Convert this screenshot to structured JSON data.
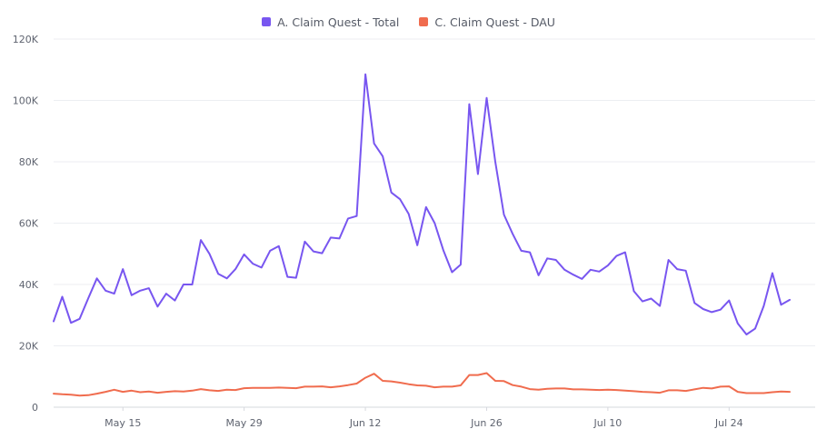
{
  "chart_data": {
    "type": "line",
    "title": "",
    "xlabel": "",
    "ylabel": "",
    "ylim": [
      0,
      120000
    ],
    "yticks": [
      0,
      20000,
      40000,
      60000,
      80000,
      100000,
      120000
    ],
    "ytick_labels": [
      "0",
      "20K",
      "40K",
      "60K",
      "80K",
      "100K",
      "120K"
    ],
    "xtick_labels": [
      "May 15",
      "May 29",
      "Jun 12",
      "Jun 26",
      "Jul 10",
      "Jul 24"
    ],
    "xtick_indices": [
      8,
      22,
      36,
      50,
      64,
      78
    ],
    "grid": true,
    "legend": "top-center",
    "x_start": "2023-05-07",
    "series": [
      {
        "name": "A. Claim Quest - Total",
        "color": "#7856f0",
        "values": [
          28000,
          36000,
          27500,
          28800,
          35500,
          42000,
          38000,
          37000,
          45000,
          36500,
          38000,
          38800,
          32800,
          37000,
          34800,
          40000,
          40000,
          54500,
          50000,
          43500,
          42000,
          45000,
          49800,
          46800,
          45500,
          51000,
          52500,
          42500,
          42200,
          54000,
          50800,
          50200,
          55300,
          55000,
          61500,
          62300,
          108500,
          86000,
          81800,
          70000,
          67800,
          63000,
          52800,
          65200,
          60000,
          51200,
          44000,
          46500,
          98800,
          76000,
          100800,
          80000,
          62800,
          56500,
          51000,
          50500,
          43000,
          48500,
          48000,
          44800,
          43200,
          41800,
          44800,
          44200,
          46200,
          49300,
          50500,
          37800,
          34500,
          35400,
          33000,
          48000,
          45000,
          44500,
          34000,
          32000,
          31000,
          31800,
          34800,
          27300,
          23700,
          25600,
          33000,
          43700,
          33400,
          35000
        ]
      },
      {
        "name": "C. Claim Quest - DAU",
        "color": "#f06c4e",
        "values": [
          4400,
          4200,
          4100,
          3800,
          3900,
          4400,
          5000,
          5700,
          5000,
          5400,
          4900,
          5100,
          4700,
          5000,
          5200,
          5100,
          5400,
          5900,
          5500,
          5300,
          5700,
          5600,
          6200,
          6300,
          6300,
          6300,
          6400,
          6300,
          6200,
          6700,
          6700,
          6800,
          6500,
          6800,
          7200,
          7700,
          9600,
          10900,
          8600,
          8400,
          8000,
          7500,
          7100,
          7000,
          6500,
          6700,
          6700,
          7100,
          10500,
          10500,
          11100,
          8600,
          8500,
          7200,
          6700,
          5900,
          5700,
          6000,
          6100,
          6100,
          5800,
          5800,
          5700,
          5600,
          5700,
          5600,
          5400,
          5200,
          5000,
          4900,
          4700,
          5500,
          5500,
          5300,
          5800,
          6300,
          6100,
          6700,
          6800,
          5000,
          4600,
          4600,
          4600,
          4900,
          5100,
          5000
        ]
      }
    ]
  }
}
